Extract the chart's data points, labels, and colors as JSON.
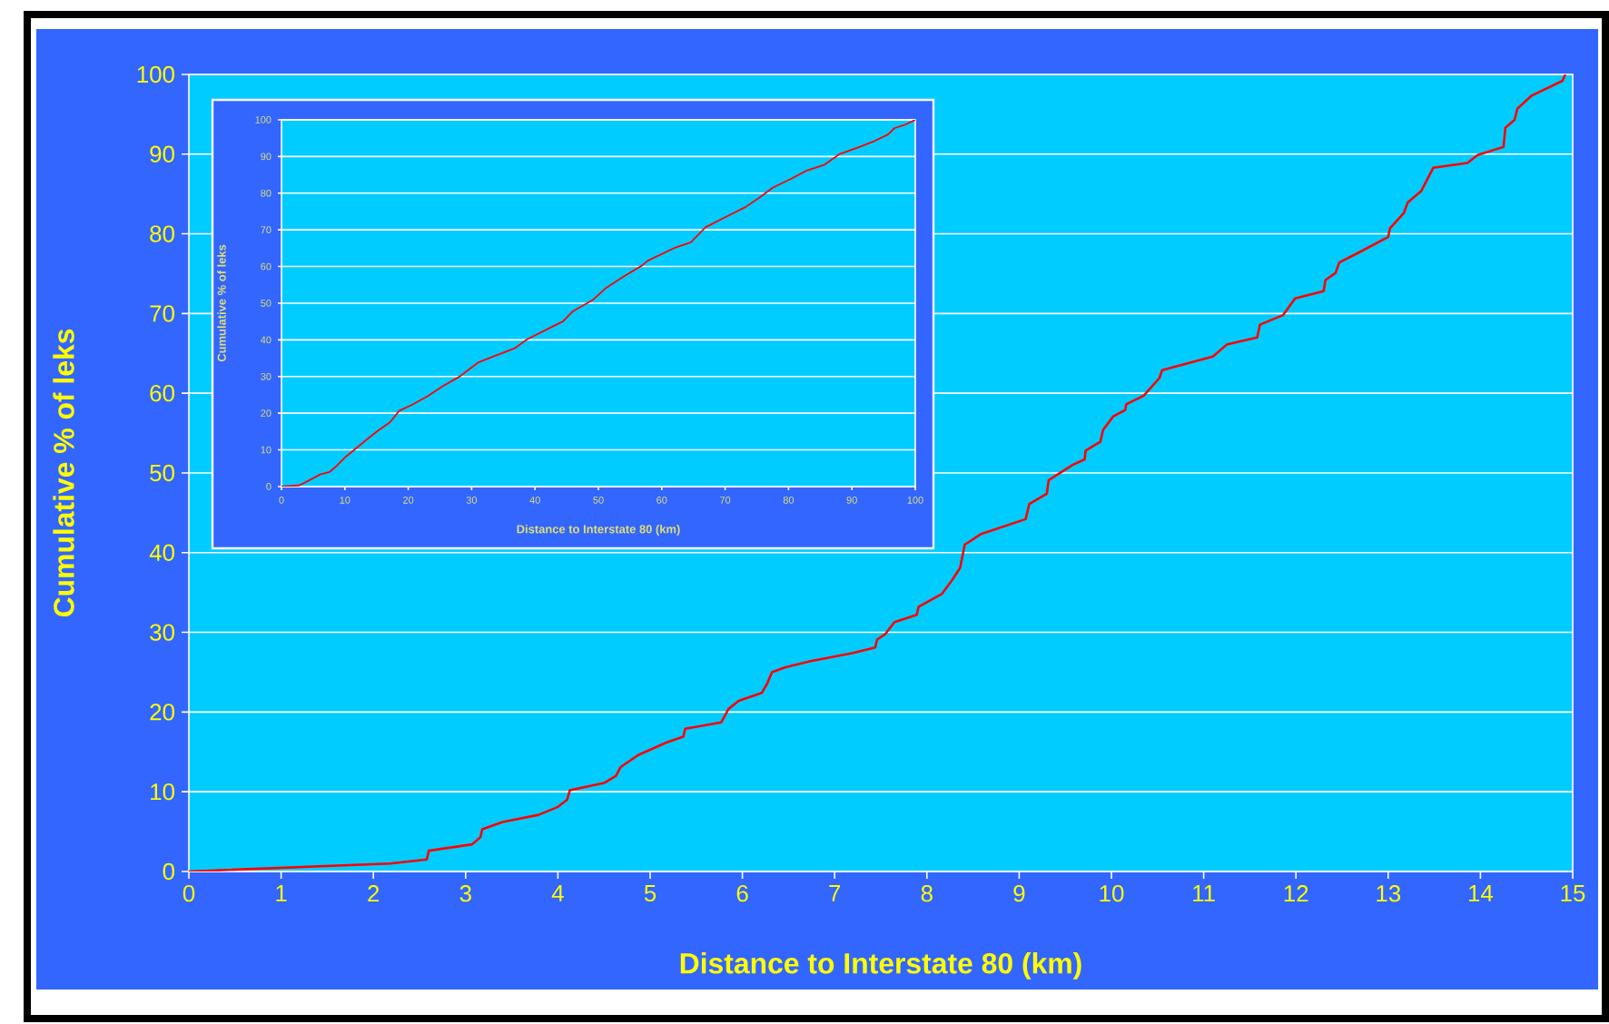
{
  "chart_data": [
    {
      "type": "line",
      "xlabel": "Distance to Interstate 80 (km)",
      "ylabel": "Cumulative % of leks",
      "xlim": [
        0,
        15
      ],
      "ylim": [
        0,
        100
      ],
      "xticks": [
        0,
        1,
        2,
        3,
        4,
        5,
        6,
        7,
        8,
        9,
        10,
        11,
        12,
        13,
        14,
        15
      ],
      "yticks": [
        0,
        10,
        20,
        30,
        40,
        50,
        60,
        70,
        80,
        90,
        100
      ],
      "grid": "y",
      "color": "#ff0000",
      "x": [
        0,
        2.18,
        2.58,
        2.6,
        3.07,
        3.16,
        3.18,
        3.4,
        3.79,
        4.0,
        4.1,
        4.13,
        4.5,
        4.63,
        4.68,
        4.87,
        5.18,
        5.36,
        5.38,
        5.77,
        5.85,
        5.96,
        6.21,
        6.27,
        6.32,
        6.46,
        6.74,
        7.19,
        7.44,
        7.46,
        7.55,
        7.65,
        7.89,
        7.91,
        8.16,
        8.27,
        8.36,
        8.41,
        8.58,
        9.07,
        9.11,
        9.3,
        9.32,
        9.58,
        9.71,
        9.72,
        9.88,
        9.91,
        10.02,
        10.15,
        10.16,
        10.35,
        10.52,
        10.55,
        11.1,
        11.25,
        11.58,
        11.61,
        11.86,
        11.99,
        12.3,
        12.32,
        12.43,
        12.47,
        12.69,
        13.0,
        13.02,
        13.17,
        13.21,
        13.36,
        13.49,
        13.86,
        13.97,
        14.25,
        14.27,
        14.37,
        14.4,
        14.55,
        14.89,
        14.92
      ],
      "values": [
        0,
        1.0,
        1.5,
        2.6,
        3.4,
        4.3,
        5.3,
        6.2,
        7.1,
        8.1,
        9.0,
        10.2,
        11.1,
        12.0,
        13.1,
        14.6,
        16.2,
        16.9,
        17.9,
        18.7,
        20.4,
        21.4,
        22.4,
        23.6,
        25.0,
        25.6,
        26.4,
        27.4,
        28.1,
        29.1,
        29.8,
        31.3,
        32.2,
        33.2,
        34.8,
        36.5,
        38.1,
        41.0,
        42.3,
        44.2,
        46.1,
        47.4,
        49.1,
        51.0,
        51.7,
        52.8,
        53.9,
        55.4,
        57.1,
        57.9,
        58.6,
        59.7,
        61.9,
        62.9,
        64.6,
        66.1,
        67.0,
        68.6,
        69.8,
        71.9,
        72.8,
        74.2,
        75.1,
        76.4,
        77.7,
        79.6,
        80.7,
        82.6,
        83.9,
        85.4,
        88.3,
        88.9,
        89.9,
        90.9,
        93.3,
        94.3,
        95.7,
        97.3,
        99.2,
        100
      ]
    },
    {
      "type": "line",
      "xlabel": "Distance to Interstate 80 (km)",
      "ylabel": "Cumulative % of leks",
      "xlim": [
        0,
        100
      ],
      "ylim": [
        0,
        100
      ],
      "xticks": [
        0,
        10,
        20,
        30,
        40,
        50,
        60,
        70,
        80,
        90,
        100
      ],
      "yticks": [
        0,
        10,
        20,
        30,
        40,
        50,
        60,
        70,
        80,
        90,
        100
      ],
      "grid": "y",
      "color": "#ff0000",
      "x": [
        0,
        2.8,
        4.7,
        6.1,
        7.6,
        8.5,
        10,
        11.4,
        13.3,
        15.2,
        17.1,
        18.6,
        20.5,
        23.1,
        25.3,
        28.2,
        31,
        32.9,
        36.8,
        38.7,
        42.5,
        44.4,
        45.9,
        49.2,
        51.1,
        54,
        56.9,
        57.8,
        62.2,
        64.6,
        66.9,
        70.3,
        73.2,
        75.6,
        77.5,
        80.4,
        82.8,
        85.6,
        88,
        90.9,
        93.3,
        95.7,
        96.7,
        98.6,
        100
      ],
      "values": [
        0,
        0.3,
        2.0,
        3.3,
        4.0,
        5.3,
        7.9,
        9.9,
        12.6,
        15.2,
        17.5,
        20.7,
        22.2,
        24.7,
        27.2,
        30.1,
        33.8,
        35.1,
        37.7,
        40.1,
        43.4,
        45,
        47.7,
        51,
        54,
        57.3,
        60.3,
        61.6,
        65.2,
        66.6,
        70.7,
        73.7,
        76.2,
        79,
        81.5,
        83.9,
        86.1,
        87.7,
        90.6,
        92.4,
        94,
        96,
        97.7,
        98.8,
        100
      ]
    }
  ]
}
